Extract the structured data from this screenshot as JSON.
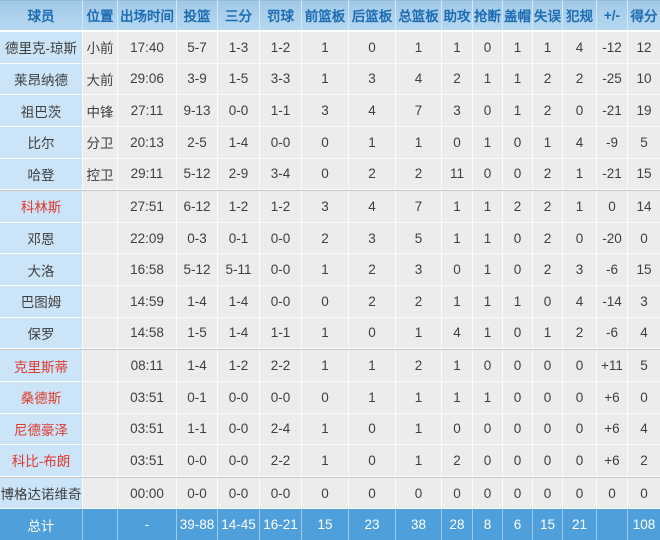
{
  "table_title": "box-score",
  "colors": {
    "header_bg": "#aacfeb",
    "header_text": "#1d6cb2",
    "name_column_bg": "#cbe4f7",
    "cell_bg": "#ececec",
    "total_row_bg": "#4f9fda",
    "total_row_text": "#ffffff",
    "red_player_name": "#e0392e",
    "body_text": "#3f3f3f"
  },
  "columns": [
    "球员",
    "位置",
    "出场时间",
    "投篮",
    "三分",
    "罚球",
    "前篮板",
    "后篮板",
    "总篮板",
    "助攻",
    "抢断",
    "盖帽",
    "失误",
    "犯规",
    "+/-",
    "得分"
  ],
  "rows": [
    {
      "cells": [
        "德里克-琼斯",
        "小前",
        "17:40",
        "5-7",
        "1-3",
        "1-2",
        "1",
        "0",
        "1",
        "1",
        "0",
        "1",
        "1",
        "4",
        "-12",
        "12"
      ],
      "red": false,
      "section_start": false
    },
    {
      "cells": [
        "莱昂纳德",
        "大前",
        "29:06",
        "3-9",
        "1-5",
        "3-3",
        "1",
        "3",
        "4",
        "2",
        "1",
        "1",
        "2",
        "2",
        "-25",
        "10"
      ],
      "red": false,
      "section_start": false
    },
    {
      "cells": [
        "祖巴茨",
        "中锋",
        "27:11",
        "9-13",
        "0-0",
        "1-1",
        "3",
        "4",
        "7",
        "3",
        "0",
        "1",
        "2",
        "0",
        "-21",
        "19"
      ],
      "red": false,
      "section_start": false
    },
    {
      "cells": [
        "比尔",
        "分卫",
        "20:13",
        "2-5",
        "1-4",
        "0-0",
        "0",
        "1",
        "1",
        "0",
        "1",
        "0",
        "1",
        "4",
        "-9",
        "5"
      ],
      "red": false,
      "section_start": false
    },
    {
      "cells": [
        "哈登",
        "控卫",
        "29:11",
        "5-12",
        "2-9",
        "3-4",
        "0",
        "2",
        "2",
        "11",
        "0",
        "0",
        "2",
        "1",
        "-21",
        "15"
      ],
      "red": false,
      "section_start": false
    },
    {
      "cells": [
        "科林斯",
        "",
        "27:51",
        "6-12",
        "1-2",
        "1-2",
        "3",
        "4",
        "7",
        "1",
        "1",
        "2",
        "2",
        "1",
        "0",
        "14"
      ],
      "red": true,
      "section_start": true
    },
    {
      "cells": [
        "邓恩",
        "",
        "22:09",
        "0-3",
        "0-1",
        "0-0",
        "2",
        "3",
        "5",
        "1",
        "1",
        "0",
        "2",
        "0",
        "-20",
        "0"
      ],
      "red": false,
      "section_start": false
    },
    {
      "cells": [
        "大洛",
        "",
        "16:58",
        "5-12",
        "5-11",
        "0-0",
        "1",
        "2",
        "3",
        "0",
        "1",
        "0",
        "2",
        "3",
        "-6",
        "15"
      ],
      "red": false,
      "section_start": false
    },
    {
      "cells": [
        "巴图姆",
        "",
        "14:59",
        "1-4",
        "1-4",
        "0-0",
        "0",
        "2",
        "2",
        "1",
        "1",
        "1",
        "0",
        "4",
        "-14",
        "3"
      ],
      "red": false,
      "section_start": false
    },
    {
      "cells": [
        "保罗",
        "",
        "14:58",
        "1-5",
        "1-4",
        "1-1",
        "1",
        "0",
        "1",
        "4",
        "1",
        "0",
        "1",
        "2",
        "-6",
        "4"
      ],
      "red": false,
      "section_start": false
    },
    {
      "cells": [
        "克里斯蒂",
        "",
        "08:11",
        "1-4",
        "1-2",
        "2-2",
        "1",
        "1",
        "2",
        "1",
        "0",
        "0",
        "0",
        "0",
        "+11",
        "5"
      ],
      "red": true,
      "section_start": true
    },
    {
      "cells": [
        "桑德斯",
        "",
        "03:51",
        "0-1",
        "0-0",
        "0-0",
        "0",
        "1",
        "1",
        "1",
        "1",
        "0",
        "0",
        "0",
        "+6",
        "0"
      ],
      "red": true,
      "section_start": false
    },
    {
      "cells": [
        "尼德豪泽",
        "",
        "03:51",
        "1-1",
        "0-0",
        "2-4",
        "1",
        "0",
        "1",
        "0",
        "0",
        "0",
        "0",
        "0",
        "+6",
        "4"
      ],
      "red": true,
      "section_start": false
    },
    {
      "cells": [
        "科比-布朗",
        "",
        "03:51",
        "0-0",
        "0-0",
        "2-2",
        "1",
        "0",
        "1",
        "2",
        "0",
        "0",
        "0",
        "0",
        "+6",
        "2"
      ],
      "red": true,
      "section_start": false
    },
    {
      "cells": [
        "博格达诺维奇",
        "",
        "00:00",
        "0-0",
        "0-0",
        "0-0",
        "0",
        "0",
        "0",
        "0",
        "0",
        "0",
        "0",
        "0",
        "0",
        "0"
      ],
      "red": false,
      "section_start": true
    }
  ],
  "total_row": {
    "cells": [
      "总计",
      "",
      "-",
      "39-88",
      "14-45",
      "16-21",
      "15",
      "23",
      "38",
      "28",
      "8",
      "6",
      "15",
      "21",
      "",
      "108"
    ]
  }
}
